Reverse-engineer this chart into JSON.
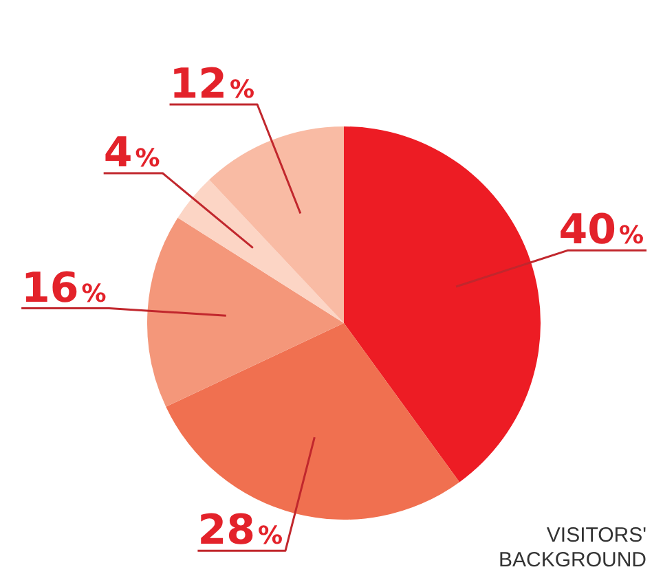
{
  "chart_data": {
    "type": "pie",
    "title": "VISITORS' BACKGROUND",
    "categories": [
      null,
      null,
      null,
      null,
      null
    ],
    "values": [
      40,
      28,
      16,
      4,
      12
    ],
    "value_labels": [
      "40%",
      "28%",
      "16%",
      "4%",
      "12%"
    ],
    "colors": [
      "#ed1c24",
      "#f07050",
      "#f4977a",
      "#fcd5c5",
      "#f9bba4"
    ]
  }
}
